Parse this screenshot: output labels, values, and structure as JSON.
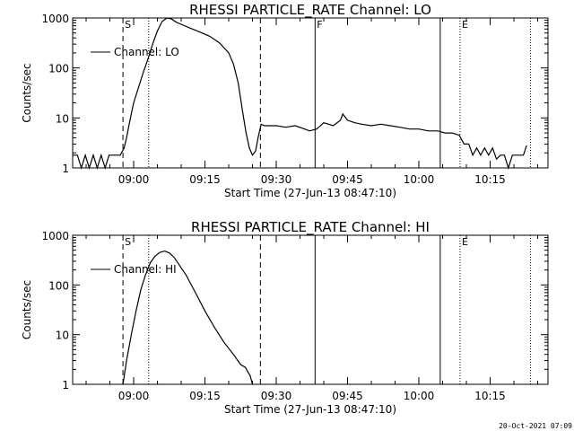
{
  "footer_timestamp": "20-Oct-2021 07:09",
  "chart_data": [
    {
      "type": "line",
      "title": "RHESSI PARTICLE_RATE Channel: LO",
      "xlabel": "Start Time (27-Jun-13 08:47:10)",
      "ylabel": "Counts/sec",
      "y_scale": "log",
      "ylim": [
        1,
        1000
      ],
      "xlim": [
        "08:47:10",
        "10:27:10"
      ],
      "x_ticks": [
        "09:00",
        "09:15",
        "09:30",
        "09:45",
        "10:00",
        "10:15"
      ],
      "y_ticks": [
        "1",
        "10",
        "100",
        "1000"
      ],
      "legend": {
        "placement": "top-left",
        "entries": [
          "Channel: LO"
        ]
      },
      "markers": [
        {
          "label": "S",
          "time": "08:57:45",
          "style": "dashed"
        },
        {
          "label": "",
          "time": "09:03:10",
          "style": "dotted"
        },
        {
          "label": "",
          "time": "09:26:40",
          "style": "dashed"
        },
        {
          "label": "F",
          "time": "09:38:10",
          "style": "solid"
        },
        {
          "label": "",
          "time": "10:04:30",
          "style": "solid"
        },
        {
          "label": "E",
          "time": "10:08:40",
          "style": "dotted"
        },
        {
          "label": "",
          "time": "10:23:30",
          "style": "dotted"
        }
      ],
      "series": [
        {
          "name": "Channel: LO",
          "x": [
            "08:47:10",
            "08:48:10",
            "08:49:00",
            "08:49:50",
            "08:50:40",
            "08:51:30",
            "08:52:20",
            "08:53:10",
            "08:54:00",
            "08:54:50",
            "08:55:40",
            "08:56:30",
            "08:57:10",
            "08:58:00",
            "08:58:30",
            "08:59:00",
            "08:59:30",
            "09:00:00",
            "09:01:00",
            "09:02:00",
            "09:03:00",
            "09:04:00",
            "09:05:00",
            "09:06:00",
            "09:07:00",
            "09:08:00",
            "09:09:00",
            "09:10:00",
            "09:12:00",
            "09:14:00",
            "09:16:00",
            "09:18:00",
            "09:20:00",
            "09:21:00",
            "09:22:00",
            "09:23:00",
            "09:23:40",
            "09:24:20",
            "09:25:00",
            "09:25:40",
            "09:26:10",
            "09:26:50",
            "09:27:30",
            "09:28:30",
            "09:30:00",
            "09:32:00",
            "09:34:00",
            "09:36:00",
            "09:37:00",
            "09:38:30",
            "09:40:00",
            "09:42:00",
            "09:43:30",
            "09:44:00",
            "09:45:00",
            "09:46:30",
            "09:48:00",
            "09:50:00",
            "09:52:00",
            "09:54:00",
            "09:56:00",
            "09:58:00",
            "10:00:00",
            "10:02:00",
            "10:04:00",
            "10:05:30",
            "10:07:00",
            "10:08:30",
            "10:09:30",
            "10:10:30",
            "10:11:20",
            "10:12:10",
            "10:13:00",
            "10:13:50",
            "10:14:40",
            "10:15:30",
            "10:16:20",
            "10:17:10",
            "10:18:00",
            "10:18:50",
            "10:19:40",
            "10:20:30",
            "10:21:20",
            "10:22:00",
            "10:22:40"
          ],
          "values": [
            1.8,
            1.8,
            1.0,
            1.8,
            1.0,
            1.8,
            1.0,
            1.8,
            1.0,
            1.8,
            1.8,
            1.8,
            1.8,
            2.5,
            4,
            7,
            12,
            20,
            40,
            80,
            150,
            300,
            550,
            850,
            1000,
            950,
            820,
            750,
            620,
            520,
            430,
            320,
            200,
            120,
            50,
            12,
            5,
            2.5,
            1.8,
            2.2,
            4,
            7.5,
            7,
            7,
            7,
            6.5,
            7,
            6,
            5.5,
            6,
            8,
            7,
            9,
            12,
            9,
            8,
            7.5,
            7,
            7.5,
            7,
            6.5,
            6,
            6,
            5.5,
            5.5,
            5,
            5,
            4.5,
            3,
            3,
            1.8,
            2.5,
            1.8,
            2.5,
            1.8,
            2.5,
            1.5,
            1.8,
            1.8,
            1.0,
            1.8,
            1.8,
            1.8,
            1.8,
            2.8
          ]
        }
      ]
    },
    {
      "type": "line",
      "title": "RHESSI PARTICLE_RATE Channel: HI",
      "xlabel": "Start Time (27-Jun-13 08:47:10)",
      "ylabel": "Counts/sec",
      "y_scale": "log",
      "ylim": [
        1,
        1000
      ],
      "xlim": [
        "08:47:10",
        "10:27:10"
      ],
      "x_ticks": [
        "09:00",
        "09:15",
        "09:30",
        "09:45",
        "10:00",
        "10:15"
      ],
      "y_ticks": [
        "1",
        "10",
        "100",
        "1000"
      ],
      "legend": {
        "placement": "top-left",
        "entries": [
          "Channel: HI"
        ]
      },
      "markers": [
        {
          "label": "S",
          "time": "08:57:45",
          "style": "dashed"
        },
        {
          "label": "",
          "time": "09:03:10",
          "style": "dotted"
        },
        {
          "label": "",
          "time": "09:26:40",
          "style": "dashed"
        },
        {
          "label": "",
          "time": "09:38:10",
          "style": "solid"
        },
        {
          "label": "",
          "time": "10:04:30",
          "style": "solid"
        },
        {
          "label": "E",
          "time": "10:08:40",
          "style": "dotted"
        },
        {
          "label": "",
          "time": "10:23:30",
          "style": "dotted"
        }
      ],
      "series": [
        {
          "name": "Channel: HI",
          "x": [
            "08:57:45",
            "08:58:30",
            "08:59:30",
            "09:00:30",
            "09:01:30",
            "09:02:30",
            "09:03:30",
            "09:04:30",
            "09:05:30",
            "09:06:30",
            "09:07:30",
            "09:08:30",
            "09:09:30",
            "09:11:00",
            "09:13:00",
            "09:15:00",
            "09:17:00",
            "09:19:00",
            "09:21:00",
            "09:22:30",
            "09:23:30",
            "09:24:00",
            "09:24:30",
            "09:25:00"
          ],
          "values": [
            1,
            3,
            10,
            30,
            80,
            160,
            280,
            380,
            450,
            480,
            440,
            360,
            260,
            160,
            70,
            30,
            14,
            7,
            4,
            2.5,
            2.2,
            1.8,
            1.5,
            1
          ]
        }
      ]
    }
  ]
}
